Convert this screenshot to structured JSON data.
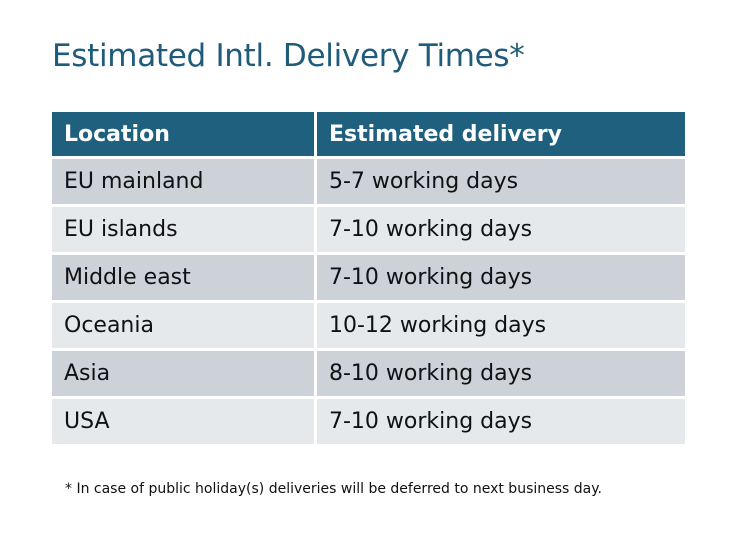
{
  "title": "Estimated Intl. Delivery Times*",
  "table": {
    "headers": [
      "Location",
      "Estimated delivery"
    ],
    "rows": [
      [
        "EU mainland",
        "5-7 working days"
      ],
      [
        "EU islands",
        "7-10 working days"
      ],
      [
        "Middle east",
        "7-10 working days"
      ],
      [
        "Oceania",
        "10-12 working days"
      ],
      [
        "Asia",
        "8-10 working days"
      ],
      [
        "USA",
        "7-10 working days"
      ]
    ]
  },
  "footnote": "* In case of public holiday(s) deliveries will be deferred to next business day.",
  "colors": {
    "header": "#20607f",
    "row_dark": "#cdd2d9",
    "row_light": "#e6e9ec",
    "title": "#1f5b7a"
  }
}
